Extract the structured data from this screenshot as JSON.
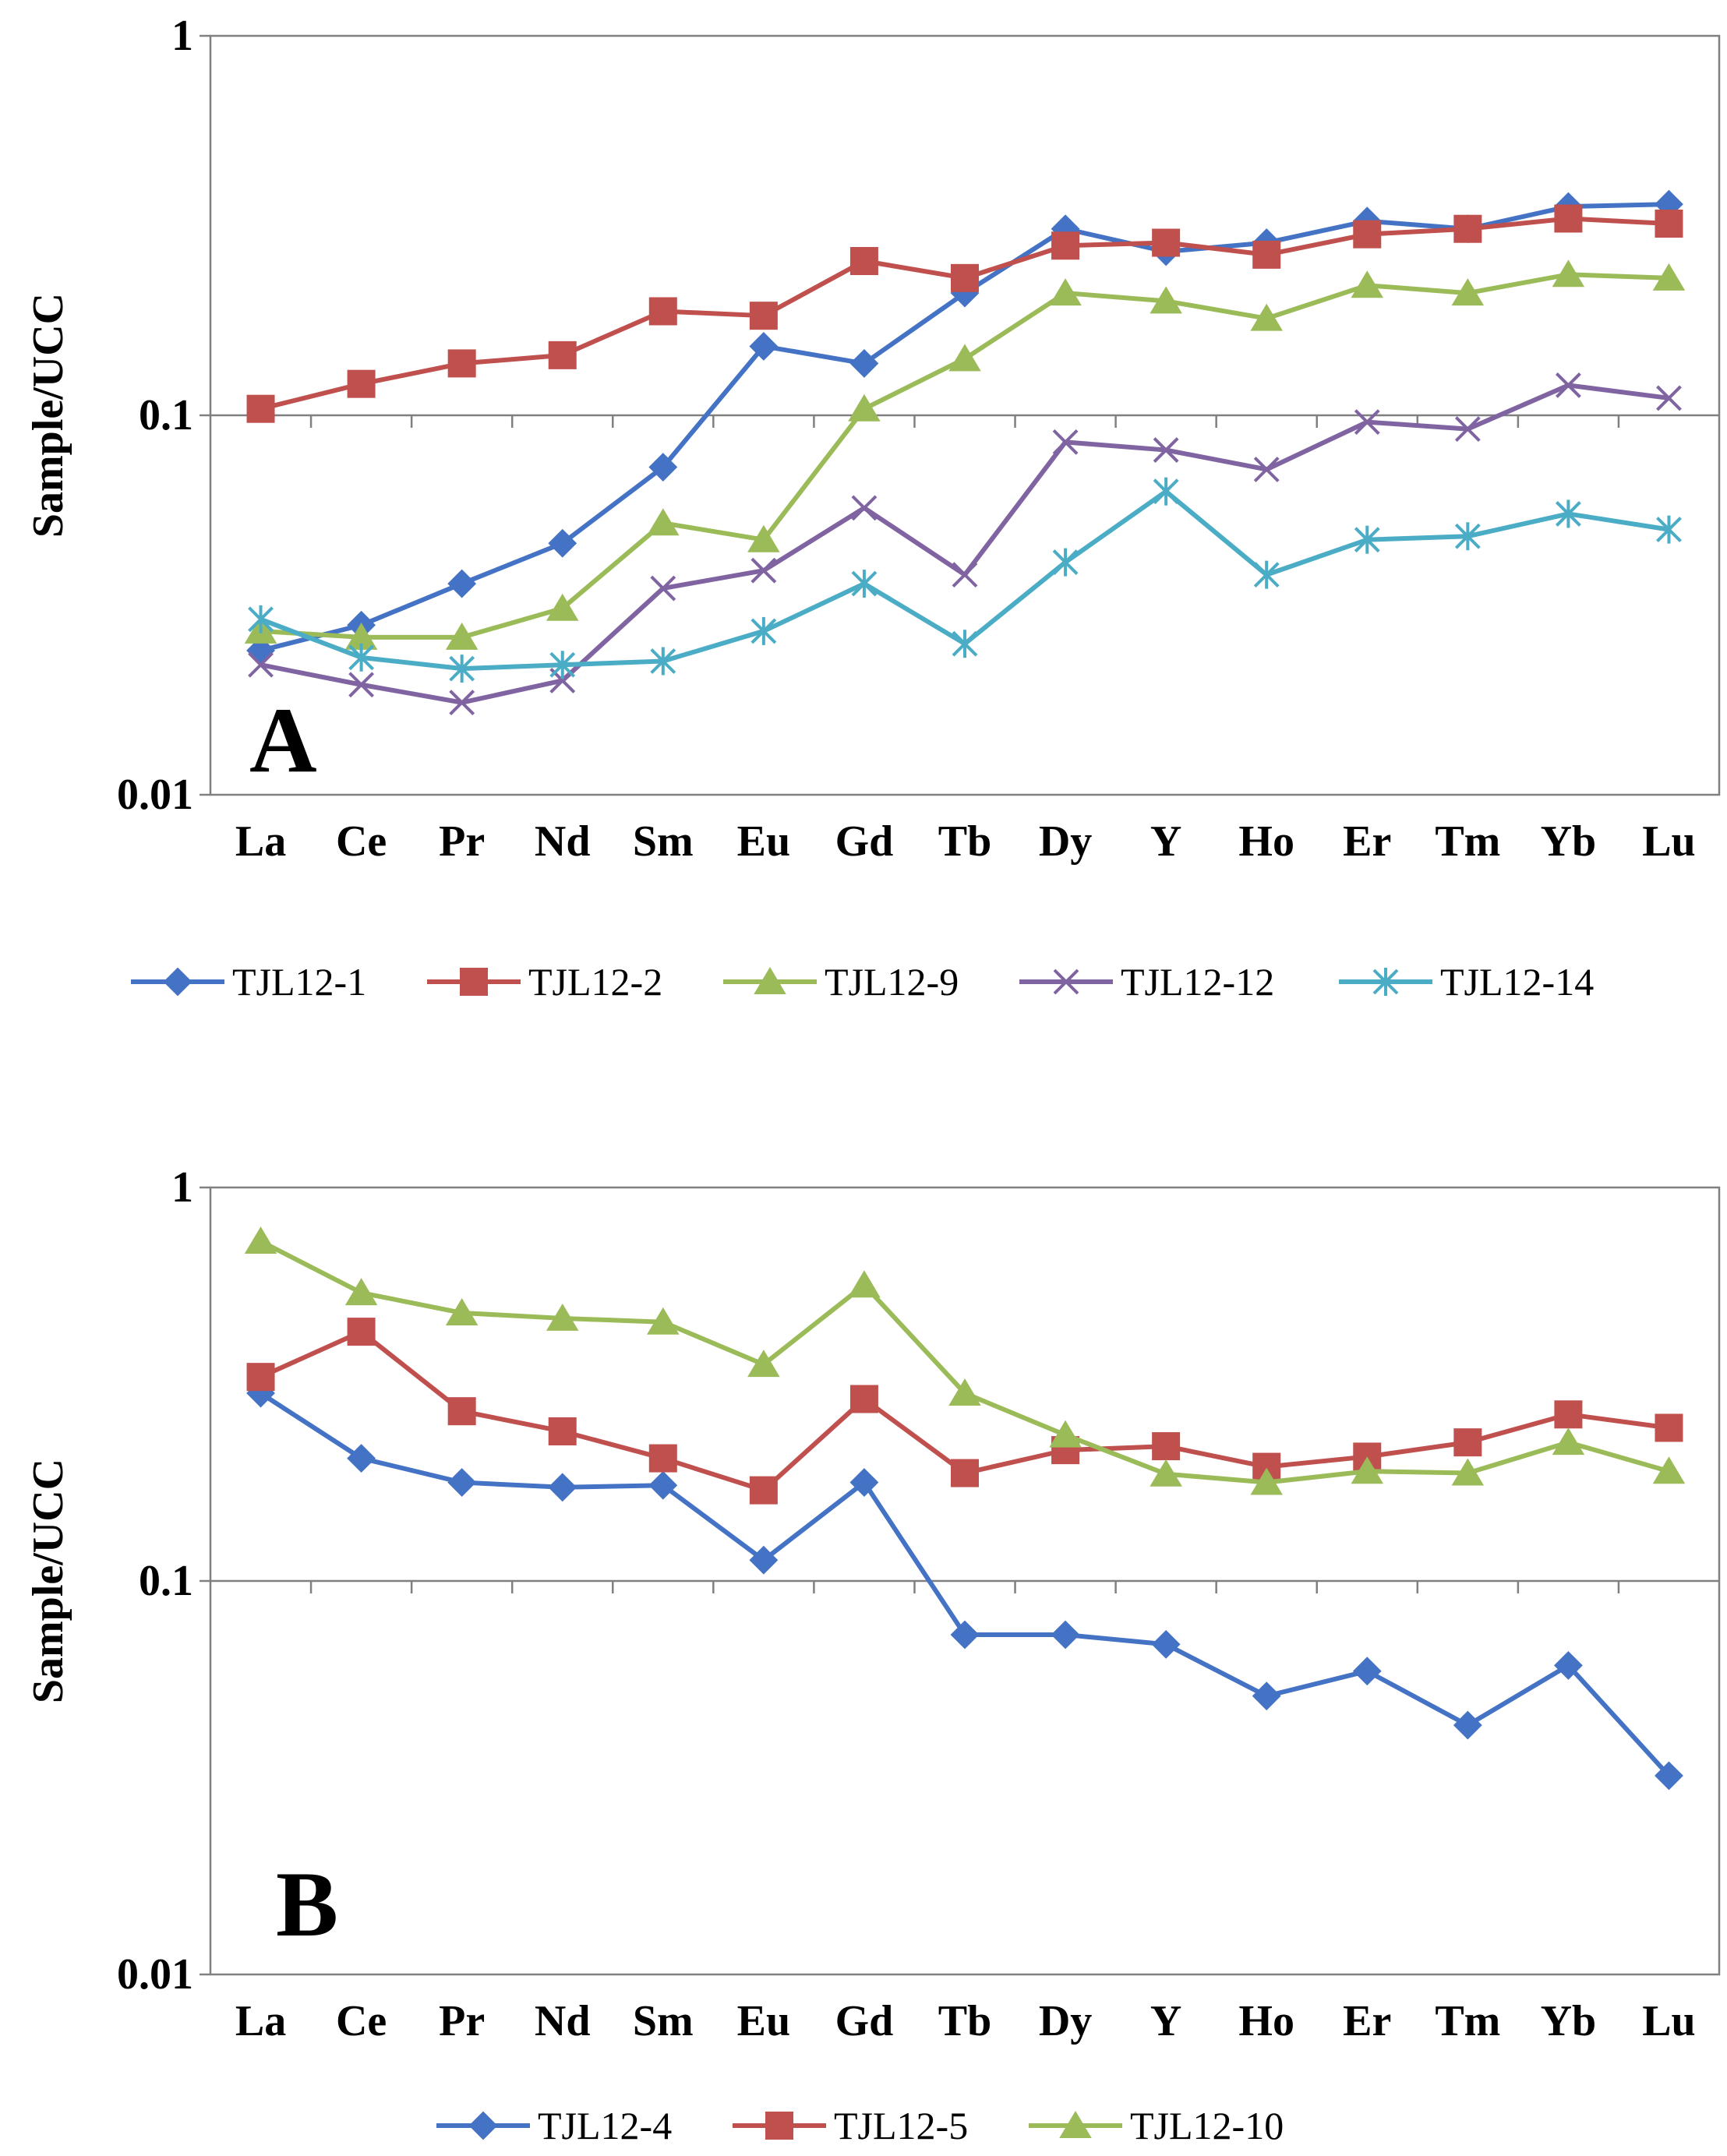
{
  "chart_data": [
    {
      "type": "line",
      "panel_label": "A",
      "ylabel": "Sample/UCC",
      "yscale": "log",
      "ylim": [
        0.01,
        1
      ],
      "yticks": [
        "1",
        "0.1",
        "0.01"
      ],
      "categories": [
        "La",
        "Ce",
        "Pr",
        "Nd",
        "Sm",
        "Eu",
        "Gd",
        "Tb",
        "Dy",
        "Y",
        "Ho",
        "Er",
        "Tm",
        "Yb",
        "Lu"
      ],
      "series": [
        {
          "name": "TJL12-1",
          "marker": "diamond",
          "color": "#4472C4",
          "values": [
            0.024,
            0.028,
            0.036,
            0.046,
            0.073,
            0.152,
            0.137,
            0.21,
            0.31,
            0.27,
            0.285,
            0.325,
            0.31,
            0.355,
            0.36
          ]
        },
        {
          "name": "TJL12-2",
          "marker": "square",
          "color": "#C0504D",
          "values": [
            0.104,
            0.121,
            0.137,
            0.144,
            0.188,
            0.183,
            0.255,
            0.23,
            0.28,
            0.285,
            0.265,
            0.3,
            0.31,
            0.33,
            0.32
          ]
        },
        {
          "name": "TJL12-9",
          "marker": "triangle",
          "color": "#9BBB59",
          "values": [
            0.027,
            0.026,
            0.026,
            0.031,
            0.052,
            0.047,
            0.104,
            0.141,
            0.21,
            0.2,
            0.18,
            0.22,
            0.21,
            0.235,
            0.23
          ]
        },
        {
          "name": "TJL12-12",
          "marker": "x",
          "color": "#8064A2",
          "values": [
            0.022,
            0.0195,
            0.0175,
            0.02,
            0.035,
            0.039,
            0.057,
            0.038,
            0.085,
            0.081,
            0.072,
            0.096,
            0.092,
            0.12,
            0.111
          ]
        },
        {
          "name": "TJL12-14",
          "marker": "star",
          "color": "#4BACC6",
          "values": [
            0.029,
            0.023,
            0.0215,
            0.022,
            0.0225,
            0.027,
            0.036,
            0.025,
            0.041,
            0.063,
            0.038,
            0.047,
            0.048,
            0.055,
            0.05
          ]
        }
      ]
    },
    {
      "type": "line",
      "panel_label": "B",
      "ylabel": "Sample/UCC",
      "yscale": "log",
      "ylim": [
        0.01,
        1
      ],
      "yticks": [
        "1",
        "0.1",
        "0.01"
      ],
      "categories": [
        "La",
        "Ce",
        "Pr",
        "Nd",
        "Sm",
        "Eu",
        "Gd",
        "Tb",
        "Dy",
        "Y",
        "Ho",
        "Er",
        "Tm",
        "Yb",
        "Lu"
      ],
      "series": [
        {
          "name": "TJL12-4",
          "marker": "diamond",
          "color": "#4472C4",
          "values": [
            0.3,
            0.205,
            0.178,
            0.173,
            0.175,
            0.113,
            0.178,
            0.073,
            0.073,
            0.069,
            0.051,
            0.059,
            0.043,
            0.061,
            0.032
          ]
        },
        {
          "name": "TJL12-5",
          "marker": "square",
          "color": "#C0504D",
          "values": [
            0.33,
            0.43,
            0.27,
            0.24,
            0.205,
            0.17,
            0.29,
            0.188,
            0.215,
            0.22,
            0.195,
            0.207,
            0.225,
            0.265,
            0.245
          ]
        },
        {
          "name": "TJL12-10",
          "marker": "triangle",
          "color": "#9BBB59",
          "values": [
            0.73,
            0.54,
            0.48,
            0.465,
            0.455,
            0.355,
            0.565,
            0.3,
            0.235,
            0.187,
            0.178,
            0.19,
            0.188,
            0.225,
            0.19
          ]
        }
      ]
    }
  ]
}
